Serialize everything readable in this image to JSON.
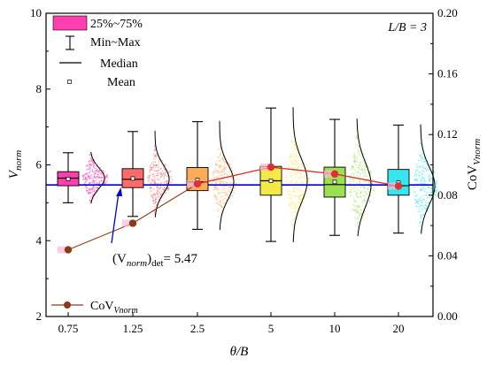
{
  "chart_data": {
    "type": "box",
    "categories": [
      "0.75",
      "1.25",
      "2.5",
      "5",
      "10",
      "20"
    ],
    "xlabel_main": "θ/B",
    "ylabel_main": "V",
    "ylabel_sub": "norm",
    "y2label_main": "CoV",
    "y2label_sub": "Vnorm",
    "ylim": [
      2,
      10
    ],
    "yticks": [
      "2",
      "4",
      "6",
      "8",
      "10"
    ],
    "y2lim": [
      0,
      0.2
    ],
    "y2ticks": [
      "0.00",
      "0.04",
      "0.08",
      "0.12",
      "0.16",
      "0.20"
    ],
    "annotation_ratio": "L/B = 3",
    "reference_line": {
      "value": 5.47,
      "label_main": "(V",
      "label_sub": "norm",
      "label_close": ")",
      "label_sub2": "det",
      "label_value": "= 5.47"
    },
    "legend": {
      "box": "25%~75%",
      "whisker": "Min~Max",
      "median": "Median",
      "mean": "Mean",
      "cov_main": "CoV",
      "cov_sub": "Vnorm"
    },
    "boxes": [
      {
        "category": "0.75",
        "min": 5.0,
        "q1": 5.45,
        "median": 5.65,
        "q3": 5.82,
        "max": 6.32,
        "mean": 5.63,
        "color": "#ff3fb0"
      },
      {
        "category": "1.25",
        "min": 4.64,
        "q1": 5.4,
        "median": 5.62,
        "q3": 5.9,
        "max": 6.88,
        "mean": 5.64,
        "color": "#ff6a6a"
      },
      {
        "category": "2.5",
        "min": 4.3,
        "q1": 5.32,
        "median": 5.55,
        "q3": 5.93,
        "max": 7.14,
        "mean": 5.6,
        "color": "#ffac5a"
      },
      {
        "category": "5",
        "min": 3.98,
        "q1": 5.2,
        "median": 5.58,
        "q3": 5.96,
        "max": 7.5,
        "mean": 5.58,
        "color": "#f3e948"
      },
      {
        "category": "10",
        "min": 4.14,
        "q1": 5.15,
        "median": 5.48,
        "q3": 5.94,
        "max": 7.2,
        "mean": 5.55,
        "color": "#9be053"
      },
      {
        "category": "20",
        "min": 4.2,
        "q1": 5.2,
        "median": 5.45,
        "q3": 5.88,
        "max": 7.05,
        "mean": 5.53,
        "color": "#36e6ec"
      }
    ],
    "cov_series": {
      "name": "CoV Vnorm",
      "values": [
        0.044,
        0.0615,
        0.0875,
        0.0985,
        0.094,
        0.086
      ],
      "color": "#e03030",
      "marker_color": "#8b3a1a"
    }
  }
}
